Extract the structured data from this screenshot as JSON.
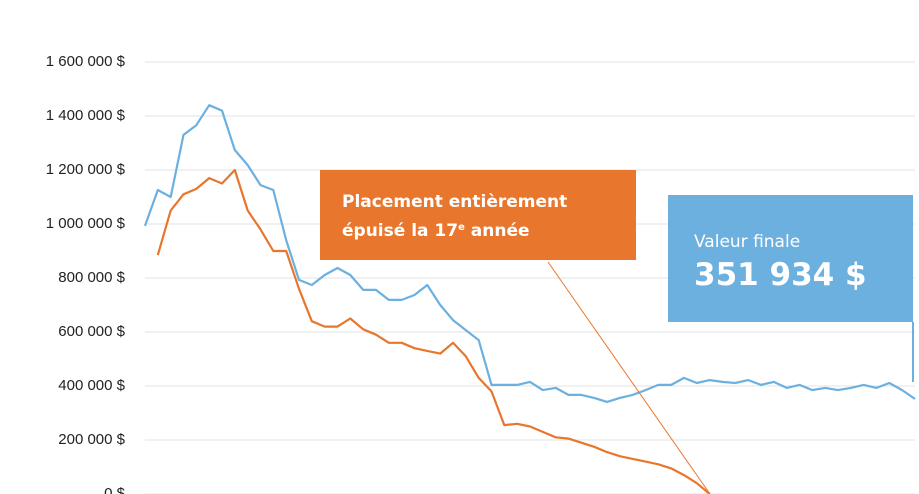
{
  "chart_data": {
    "type": "line",
    "ylim": [
      0,
      1600000
    ],
    "yticks": [
      {
        "value": 0,
        "label": "0 $"
      },
      {
        "value": 200000,
        "label": "200 000 $"
      },
      {
        "value": 400000,
        "label": "400 000 $"
      },
      {
        "value": 600000,
        "label": "600 000 $"
      },
      {
        "value": 800000,
        "label": "800 000 $"
      },
      {
        "value": 1000000,
        "label": "1 000 000 $"
      },
      {
        "value": 1200000,
        "label": "1 200 000 $"
      },
      {
        "value": 1400000,
        "label": "1 400 000 $"
      },
      {
        "value": 1600000,
        "label": "1 600 000 $"
      }
    ],
    "grid": true,
    "series": [
      {
        "color": "#6cb0e0",
        "values": [
          993000,
          1126000,
          1100000,
          1330000,
          1366000,
          1440000,
          1420000,
          1274000,
          1218000,
          1144000,
          1126000,
          940000,
          793000,
          774000,
          811000,
          837000,
          811000,
          756000,
          756000,
          719000,
          719000,
          737000,
          774000,
          700000,
          644000,
          607000,
          570000,
          404000,
          404000,
          404000,
          415000,
          385000,
          393000,
          367000,
          367000,
          356000,
          341000,
          356000,
          367000,
          385000,
          404000,
          404000,
          430000,
          411000,
          422000,
          415000,
          411000,
          422000,
          404000,
          415000,
          393000,
          404000,
          385000,
          393000,
          385000,
          393000,
          404000,
          393000,
          411000,
          385000,
          351934
        ]
      },
      {
        "color": "#e8762c",
        "values": [
          null,
          885000,
          1050000,
          1110000,
          1130000,
          1170000,
          1150000,
          1200000,
          1050000,
          980000,
          900000,
          900000,
          760000,
          640000,
          620000,
          620000,
          650000,
          610000,
          590000,
          560000,
          560000,
          540000,
          530000,
          520000,
          560000,
          510000,
          430000,
          380000,
          255000,
          260000,
          250000,
          230000,
          210000,
          205000,
          190000,
          175000,
          155000,
          140000,
          130000,
          120000,
          110000,
          95000,
          70000,
          40000,
          0,
          null,
          null,
          null,
          null,
          null,
          null,
          null,
          null,
          null,
          null,
          null,
          null,
          null,
          null,
          null,
          null
        ]
      }
    ],
    "annotations": {
      "depleted": {
        "line1": "Placement entièrement",
        "line2_before": "épuisé la 17",
        "line2_sup": "e",
        "line2_after": " année"
      },
      "final": {
        "label": "Valeur finale",
        "amount": "351 934 $"
      }
    }
  }
}
